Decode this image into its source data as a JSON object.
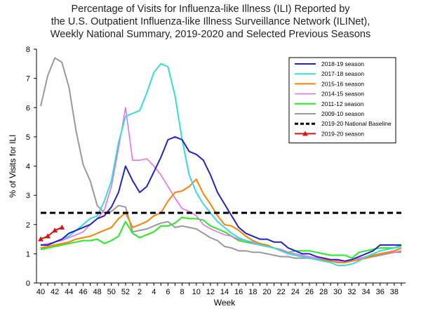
{
  "chart_data": {
    "type": "line",
    "title_lines": [
      "Percentage of Visits for Influenza-like Illness (ILI) Reported by",
      "the U.S. Outpatient Influenza-like Illness Surveillance Network (ILINet),",
      "Weekly National Summary, 2019-2020 and Selected Previous Seasons"
    ],
    "xlabel": "Week",
    "ylabel": "% of Visits for ILI",
    "ylim": [
      0,
      8
    ],
    "yticks": [
      0,
      1,
      2,
      3,
      4,
      5,
      6,
      7,
      8
    ],
    "week_sequence": [
      40,
      41,
      42,
      43,
      44,
      45,
      46,
      47,
      48,
      49,
      50,
      51,
      52,
      1,
      2,
      3,
      4,
      5,
      6,
      7,
      8,
      9,
      10,
      11,
      12,
      13,
      14,
      15,
      16,
      17,
      18,
      19,
      20,
      21,
      22,
      23,
      24,
      25,
      26,
      27,
      28,
      29,
      30,
      31,
      32,
      33,
      34,
      35,
      36,
      37,
      38,
      39
    ],
    "xtick_labels": [
      "40",
      "42",
      "44",
      "46",
      "48",
      "50",
      "52",
      "2",
      "4",
      "6",
      "8",
      "10",
      "12",
      "14",
      "16",
      "18",
      "20",
      "22",
      "24",
      "26",
      "28",
      "30",
      "32",
      "34",
      "36",
      "38"
    ],
    "legend_position": "top-right",
    "series": [
      {
        "name": "2018-19 season",
        "color": "#2222cc",
        "width": 2,
        "dash": "",
        "values": [
          1.3,
          1.3,
          1.4,
          1.5,
          1.7,
          1.8,
          1.9,
          2.0,
          2.2,
          2.3,
          2.6,
          3.1,
          4.0,
          3.5,
          3.1,
          3.3,
          3.8,
          4.3,
          4.9,
          5.0,
          4.9,
          4.5,
          4.4,
          4.2,
          3.7,
          3.1,
          2.7,
          2.3,
          1.9,
          1.7,
          1.6,
          1.5,
          1.5,
          1.4,
          1.4,
          1.2,
          1.1,
          1.0,
          1.0,
          0.9,
          0.85,
          0.8,
          0.8,
          0.75,
          0.8,
          0.9,
          1.0,
          1.1,
          1.3,
          1.3,
          1.3,
          1.3
        ]
      },
      {
        "name": "2017-18 season",
        "color": "#33dddd",
        "width": 2,
        "dash": "",
        "values": [
          1.3,
          1.3,
          1.4,
          1.5,
          1.6,
          1.8,
          2.0,
          2.2,
          2.3,
          2.8,
          3.5,
          4.8,
          5.7,
          5.8,
          5.9,
          6.5,
          7.2,
          7.5,
          7.4,
          6.4,
          4.9,
          3.7,
          3.1,
          2.7,
          2.4,
          2.1,
          1.9,
          1.7,
          1.55,
          1.45,
          1.4,
          1.3,
          1.25,
          1.2,
          1.1,
          1.0,
          0.95,
          0.9,
          0.85,
          0.8,
          0.75,
          0.7,
          0.6,
          0.6,
          0.65,
          0.75,
          0.9,
          1.0,
          1.1,
          1.15,
          1.2,
          1.25
        ]
      },
      {
        "name": "2015-16 season",
        "color": "#ff8000",
        "width": 2,
        "dash": "",
        "values": [
          1.2,
          1.25,
          1.3,
          1.35,
          1.4,
          1.5,
          1.55,
          1.6,
          1.7,
          1.8,
          1.9,
          2.2,
          2.4,
          1.9,
          2.0,
          2.1,
          2.3,
          2.4,
          2.8,
          3.1,
          3.15,
          3.3,
          3.55,
          3.05,
          2.7,
          2.3,
          2.0,
          1.95,
          1.8,
          1.6,
          1.45,
          1.35,
          1.3,
          1.2,
          1.1,
          1.0,
          0.95,
          0.9,
          0.85,
          0.8,
          0.8,
          0.75,
          0.7,
          0.7,
          0.75,
          0.8,
          0.85,
          0.95,
          1.0,
          1.05,
          1.1,
          1.2
        ]
      },
      {
        "name": "2014-15 season",
        "color": "#ee66ee",
        "width": 1.5,
        "dash": "",
        "values": [
          1.3,
          1.35,
          1.4,
          1.45,
          1.55,
          1.65,
          1.75,
          2.0,
          2.2,
          2.5,
          3.3,
          4.6,
          6.0,
          4.2,
          4.2,
          4.25,
          4.0,
          3.7,
          3.3,
          2.9,
          2.55,
          2.45,
          2.3,
          2.0,
          1.85,
          1.75,
          1.65,
          1.6,
          1.5,
          1.45,
          1.35,
          1.3,
          1.25,
          1.2,
          1.15,
          1.05,
          1.0,
          0.95,
          0.9,
          0.85,
          0.8,
          0.8,
          0.75,
          0.75,
          0.8,
          0.85,
          0.9,
          0.95,
          1.0,
          1.05,
          1.05,
          1.1
        ]
      },
      {
        "name": "2011-12 season",
        "color": "#22ee22",
        "width": 2,
        "dash": "",
        "values": [
          1.15,
          1.2,
          1.25,
          1.3,
          1.35,
          1.4,
          1.45,
          1.45,
          1.5,
          1.35,
          1.45,
          1.6,
          2.1,
          1.7,
          1.55,
          1.65,
          1.75,
          1.95,
          1.95,
          2.05,
          2.25,
          2.2,
          2.2,
          2.15,
          1.95,
          1.85,
          1.75,
          1.6,
          1.45,
          1.4,
          1.35,
          1.3,
          1.25,
          1.2,
          1.1,
          1.05,
          1.1,
          1.1,
          1.1,
          1.05,
          1.0,
          0.95,
          0.95,
          0.95,
          0.85,
          1.05,
          1.1,
          1.15,
          1.2,
          1.2,
          1.2,
          1.3
        ]
      },
      {
        "name": "2009-10 season",
        "color": "#999999",
        "width": 2,
        "dash": "",
        "values": [
          6.05,
          7.1,
          7.7,
          7.55,
          6.7,
          5.2,
          4.05,
          3.5,
          2.65,
          2.4,
          2.45,
          2.65,
          2.6,
          1.75,
          1.8,
          1.85,
          1.95,
          2.05,
          2.1,
          1.9,
          1.95,
          1.9,
          1.85,
          1.7,
          1.55,
          1.45,
          1.25,
          1.2,
          1.1,
          1.1,
          1.05,
          1.05,
          1.0,
          0.95,
          0.9,
          0.9,
          0.85,
          0.85,
          0.85,
          0.8,
          0.75,
          0.75,
          0.7,
          0.7,
          0.75,
          0.8,
          0.85,
          0.9,
          0.95,
          1.0,
          1.05,
          1.05
        ]
      },
      {
        "name": "2019-20 National Baseline",
        "color": "#000000",
        "width": 3,
        "dash": "8,5",
        "values": [
          2.4,
          2.4,
          2.4,
          2.4,
          2.4,
          2.4,
          2.4,
          2.4,
          2.4,
          2.4,
          2.4,
          2.4,
          2.4,
          2.4,
          2.4,
          2.4,
          2.4,
          2.4,
          2.4,
          2.4,
          2.4,
          2.4,
          2.4,
          2.4,
          2.4,
          2.4,
          2.4,
          2.4,
          2.4,
          2.4,
          2.4,
          2.4,
          2.4,
          2.4,
          2.4,
          2.4,
          2.4,
          2.4,
          2.4,
          2.4,
          2.4,
          2.4,
          2.4,
          2.4,
          2.4,
          2.4,
          2.4,
          2.4,
          2.4,
          2.4,
          2.4,
          2.4
        ]
      },
      {
        "name": "2019-20 season",
        "color": "#dd1111",
        "width": 2,
        "dash": "",
        "marker": "triangle",
        "values": [
          1.5,
          1.6,
          1.8,
          1.9
        ]
      }
    ]
  }
}
